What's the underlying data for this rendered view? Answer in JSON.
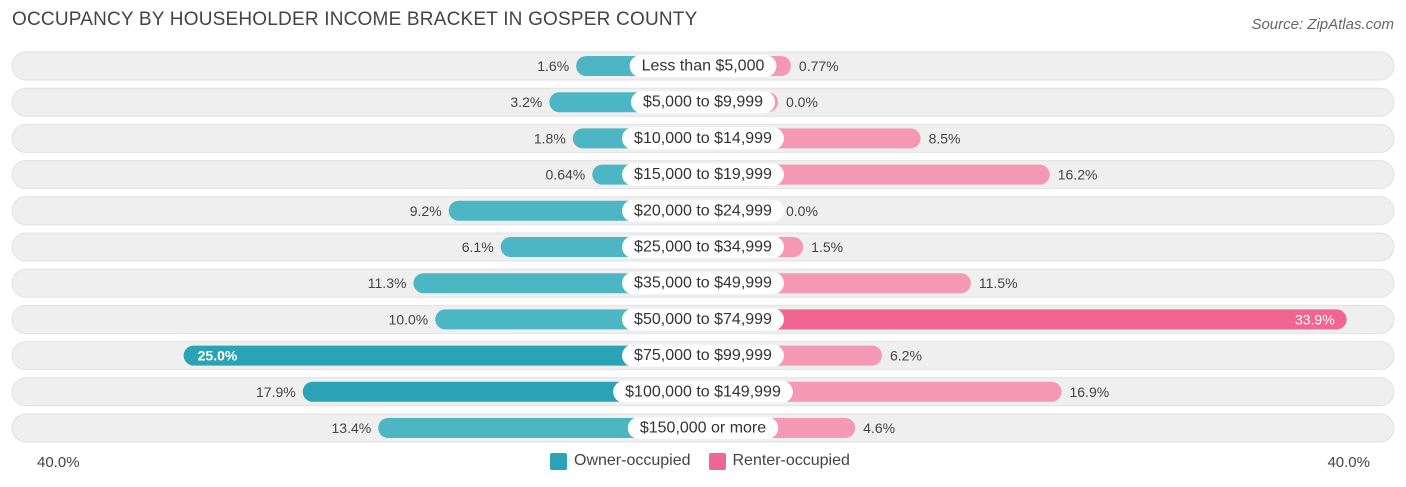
{
  "title": "OCCUPANCY BY HOUSEHOLDER INCOME BRACKET IN GOSPER COUNTY",
  "source": "Source: ZipAtlas.com",
  "colors": {
    "owner": "#4db6c4",
    "owner_strong": "#2aa4b4",
    "renter": "#f598b5",
    "renter_strong": "#f06592",
    "track": "#efefef"
  },
  "chart_data": {
    "type": "bar",
    "orientation": "diverging-horizontal",
    "title": "OCCUPANCY BY HOUSEHOLDER INCOME BRACKET IN GOSPER COUNTY",
    "categories": [
      "Less than $5,000",
      "$5,000 to $9,999",
      "$10,000 to $14,999",
      "$15,000 to $19,999",
      "$20,000 to $24,999",
      "$25,000 to $34,999",
      "$35,000 to $49,999",
      "$50,000 to $74,999",
      "$75,000 to $99,999",
      "$100,000 to $149,999",
      "$150,000 or more"
    ],
    "series": [
      {
        "name": "Owner-occupied",
        "values": [
          1.6,
          3.2,
          1.8,
          0.64,
          9.2,
          6.1,
          11.3,
          10.0,
          25.0,
          17.9,
          13.4
        ],
        "labels": [
          "1.6%",
          "3.2%",
          "1.8%",
          "0.64%",
          "9.2%",
          "6.1%",
          "11.3%",
          "10.0%",
          "25.0%",
          "17.9%",
          "13.4%"
        ]
      },
      {
        "name": "Renter-occupied",
        "values": [
          0.77,
          0.0,
          8.5,
          16.2,
          0.0,
          1.5,
          11.5,
          33.9,
          6.2,
          16.9,
          4.6
        ],
        "labels": [
          "0.77%",
          "0.0%",
          "8.5%",
          "16.2%",
          "0.0%",
          "1.5%",
          "11.5%",
          "33.9%",
          "6.2%",
          "16.9%",
          "4.6%"
        ]
      }
    ],
    "xlim": [
      -40,
      40
    ],
    "axis_left_label": "40.0%",
    "axis_right_label": "40.0%",
    "legend": [
      "Owner-occupied",
      "Renter-occupied"
    ],
    "legend_position": "bottom-center"
  }
}
